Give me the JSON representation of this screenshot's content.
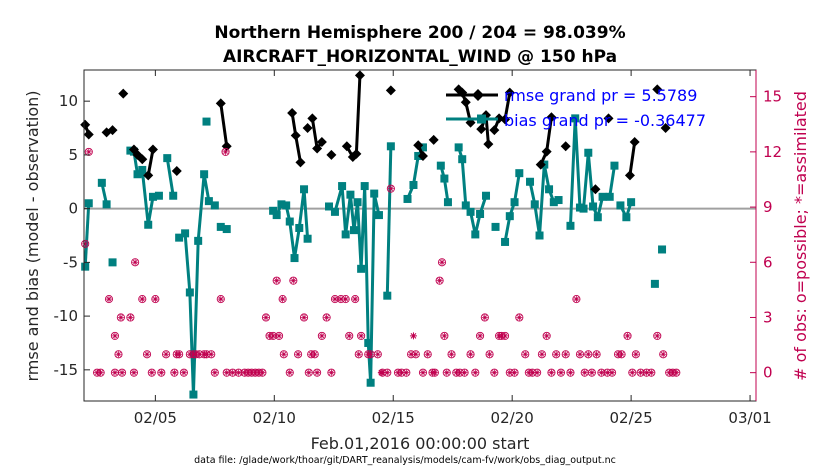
{
  "chart_data": {
    "type": "line",
    "title": "Northern Hemisphere 200 / 204 = 98.039%",
    "subtitle": "AIRCRAFT_HORIZONTAL_WIND @ 150 hPa",
    "ylabel": "rmse and bias (model - observation)",
    "y2label": "# of obs: o=possible; *=assimilated",
    "xlabel": "Feb.01,2016 00:00:00 start",
    "footnote": "data file: /glade/work/thoar/git/DART_reanalysis/models/cam-fv/work/obs_diag_output.nc",
    "xlim": [
      1.0,
      29.25
    ],
    "ylim": [
      -17.9,
      12.9
    ],
    "y2lim": [
      -1.54,
      16.45
    ],
    "x_ticks": [
      {
        "v": 4,
        "label": "02/05"
      },
      {
        "v": 9,
        "label": "02/10"
      },
      {
        "v": 14,
        "label": "02/15"
      },
      {
        "v": 19,
        "label": "02/20"
      },
      {
        "v": 24,
        "label": "02/25"
      },
      {
        "v": 29,
        "label": "03/01"
      }
    ],
    "y_ticks": [
      {
        "v": 10,
        "label": "10"
      },
      {
        "v": 5,
        "label": "5"
      },
      {
        "v": 0,
        "label": "0"
      },
      {
        "v": -5,
        "label": "-5"
      },
      {
        "v": -10,
        "label": "-10"
      },
      {
        "v": -15,
        "label": "-15"
      }
    ],
    "y2_ticks": [
      {
        "v": 15,
        "label": "15"
      },
      {
        "v": 12,
        "label": "12"
      },
      {
        "v": 9,
        "label": "9"
      },
      {
        "v": 6,
        "label": "6"
      },
      {
        "v": 3,
        "label": "3"
      },
      {
        "v": 0,
        "label": "0"
      }
    ],
    "series": [
      {
        "name": "rmse grand pr = 5.5789",
        "color": "#000000",
        "segments": [
          [
            [
              1.05,
              7.8
            ],
            [
              1.2,
              6.9
            ]
          ],
          [
            [
              1.95,
              7.1
            ]
          ],
          [
            [
              2.2,
              7.3
            ]
          ],
          [
            [
              2.65,
              10.7
            ]
          ],
          [
            [
              3.1,
              5.5
            ],
            [
              3.25,
              5.0
            ],
            [
              3.45,
              4.6
            ]
          ],
          [
            [
              3.7,
              3.1
            ],
            [
              3.9,
              5.5
            ]
          ],
          [
            [
              4.9,
              3.5
            ]
          ],
          [
            [
              6.75,
              9.8
            ],
            [
              7.0,
              5.8
            ]
          ],
          [
            [
              9.75,
              8.9
            ],
            [
              9.9,
              6.8
            ],
            [
              10.1,
              4.3
            ]
          ],
          [
            [
              10.4,
              7.5
            ]
          ],
          [
            [
              10.6,
              8.4
            ],
            [
              10.8,
              5.6
            ],
            [
              11.0,
              6.2
            ]
          ],
          [
            [
              11.4,
              5.0
            ]
          ],
          [
            [
              12.05,
              5.8
            ],
            [
              12.3,
              4.8
            ],
            [
              12.45,
              5.1
            ],
            [
              12.6,
              12.4
            ]
          ],
          [
            [
              13.9,
              11.0
            ]
          ],
          [
            [
              15.05,
              5.9
            ],
            [
              15.25,
              4.9
            ]
          ],
          [
            [
              15.7,
              6.4
            ]
          ],
          [
            [
              16.75,
              11.1
            ],
            [
              16.9,
              10.8
            ],
            [
              17.05,
              9.9
            ],
            [
              17.25,
              8.0
            ]
          ],
          [
            [
              17.7,
              7.4
            ],
            [
              17.9,
              8.7
            ],
            [
              18.0,
              6.0
            ]
          ],
          [
            [
              18.25,
              7.3
            ],
            [
              18.45,
              8.4
            ]
          ],
          [
            [
              18.7,
              8.3
            ],
            [
              18.9,
              10.8
            ]
          ],
          [
            [
              20.2,
              4.1
            ],
            [
              20.45,
              5.3
            ],
            [
              20.65,
              8.5
            ]
          ],
          [
            [
              21.25,
              5.8
            ]
          ],
          [
            [
              22.5,
              1.8
            ]
          ],
          [
            [
              23.05,
              8.4
            ]
          ],
          [
            [
              23.95,
              3.1
            ],
            [
              24.15,
              6.2
            ]
          ],
          [
            [
              25.1,
              11.1
            ]
          ],
          [
            [
              25.45,
              7.5
            ]
          ]
        ]
      },
      {
        "name": "bias grand pr = -0.36477",
        "color": "#008080",
        "segments": [
          [
            [
              1.05,
              -5.4
            ],
            [
              1.2,
              0.5
            ]
          ],
          [
            [
              1.75,
              2.4
            ],
            [
              1.95,
              0.4
            ]
          ],
          [
            [
              2.2,
              -5.0
            ]
          ],
          [
            [
              2.95,
              5.4
            ],
            [
              3.1,
              5.3
            ],
            [
              3.25,
              3.2
            ],
            [
              3.45,
              3.6
            ],
            [
              3.7,
              -1.5
            ],
            [
              3.9,
              1.1
            ]
          ],
          [
            [
              4.15,
              1.2
            ]
          ],
          [
            [
              4.5,
              4.7
            ],
            [
              4.75,
              1.2
            ]
          ],
          [
            [
              5.0,
              -2.7
            ],
            [
              5.25,
              -2.3
            ],
            [
              5.45,
              -7.8
            ],
            [
              5.6,
              -17.3
            ],
            [
              5.8,
              -3.0
            ],
            [
              6.05,
              3.2
            ],
            [
              6.25,
              0.7
            ]
          ],
          [
            [
              6.5,
              0.3
            ]
          ],
          [
            [
              6.75,
              -1.7
            ],
            [
              7.0,
              -1.9
            ]
          ],
          [
            [
              6.15,
              8.1
            ]
          ],
          [
            [
              8.95,
              -0.2
            ],
            [
              9.1,
              -0.6
            ],
            [
              9.3,
              0.4
            ],
            [
              9.5,
              0.3
            ],
            [
              9.65,
              -1.2
            ],
            [
              9.85,
              -4.6
            ],
            [
              10.05,
              -1.8
            ],
            [
              10.25,
              1.8
            ],
            [
              10.4,
              -2.8
            ]
          ],
          [
            [
              11.3,
              0.2
            ]
          ],
          [
            [
              11.55,
              -0.3
            ],
            [
              11.85,
              2.1
            ],
            [
              12.0,
              -2.4
            ],
            [
              12.2,
              1.3
            ],
            [
              12.35,
              -2.0
            ],
            [
              12.5,
              0.6
            ],
            [
              12.65,
              -5.6
            ],
            [
              12.8,
              2.1
            ],
            [
              12.95,
              -12.5
            ],
            [
              13.05,
              -16.2
            ],
            [
              13.2,
              1.4
            ],
            [
              13.4,
              -0.6
            ]
          ],
          [
            [
              13.75,
              -8.1
            ],
            [
              13.9,
              5.8
            ]
          ],
          [
            [
              14.6,
              0.9
            ],
            [
              14.85,
              2.2
            ],
            [
              15.05,
              4.9
            ],
            [
              15.25,
              5.7
            ]
          ],
          [
            [
              16.0,
              4.0
            ],
            [
              16.15,
              2.8
            ],
            [
              16.3,
              0.6
            ]
          ],
          [
            [
              16.75,
              5.7
            ],
            [
              16.9,
              4.6
            ],
            [
              17.05,
              0.3
            ],
            [
              17.25,
              -0.3
            ],
            [
              17.45,
              -2.4
            ],
            [
              17.65,
              -0.5
            ],
            [
              17.9,
              1.2
            ]
          ],
          [
            [
              18.3,
              -1.7
            ]
          ],
          [
            [
              18.7,
              -3.1
            ],
            [
              18.9,
              -0.7
            ],
            [
              19.1,
              0.6
            ],
            [
              19.3,
              3.3
            ]
          ],
          [
            [
              19.75,
              2.5
            ],
            [
              19.95,
              0.4
            ],
            [
              20.15,
              -2.5
            ],
            [
              20.35,
              4.1
            ],
            [
              20.55,
              1.8
            ],
            [
              20.75,
              0.6
            ],
            [
              20.95,
              0.8
            ]
          ],
          [
            [
              21.45,
              -1.6
            ],
            [
              21.65,
              8.4
            ],
            [
              21.85,
              0.1
            ],
            [
              22.0,
              0.0
            ],
            [
              22.2,
              5.2
            ],
            [
              22.4,
              0.2
            ],
            [
              22.6,
              -0.8
            ],
            [
              22.8,
              1.1
            ]
          ],
          [
            [
              23.1,
              1.1
            ],
            [
              23.3,
              4.0
            ]
          ],
          [
            [
              23.55,
              0.3
            ],
            [
              23.8,
              -0.8
            ],
            [
              24.0,
              0.6
            ]
          ],
          [
            [
              25.0,
              -7.0
            ]
          ],
          [
            [
              25.3,
              -3.8
            ]
          ]
        ]
      }
    ],
    "obs_possible": [
      [
        1.05,
        7
      ],
      [
        1.2,
        12
      ],
      [
        1.55,
        0
      ],
      [
        1.7,
        0
      ],
      [
        2.05,
        4
      ],
      [
        2.3,
        0
      ],
      [
        2.3,
        2
      ],
      [
        2.45,
        1
      ],
      [
        2.55,
        3
      ],
      [
        2.6,
        0
      ],
      [
        2.95,
        3
      ],
      [
        3.1,
        0
      ],
      [
        3.15,
        6
      ],
      [
        3.45,
        4
      ],
      [
        3.65,
        1
      ],
      [
        3.85,
        0
      ],
      [
        4.0,
        4
      ],
      [
        4.25,
        0
      ],
      [
        4.45,
        1
      ],
      [
        4.8,
        0
      ],
      [
        4.9,
        1
      ],
      [
        5.0,
        1
      ],
      [
        5.2,
        0
      ],
      [
        5.45,
        1
      ],
      [
        5.6,
        1
      ],
      [
        5.7,
        1
      ],
      [
        5.85,
        1
      ],
      [
        6.05,
        1
      ],
      [
        6.15,
        1
      ],
      [
        6.35,
        1
      ],
      [
        6.5,
        0
      ],
      [
        6.75,
        4
      ],
      [
        6.95,
        12
      ],
      [
        7.0,
        0
      ],
      [
        7.25,
        0
      ],
      [
        7.5,
        0
      ],
      [
        7.75,
        0
      ],
      [
        7.9,
        0
      ],
      [
        8.05,
        0
      ],
      [
        8.2,
        0
      ],
      [
        8.35,
        0
      ],
      [
        8.5,
        0
      ],
      [
        8.65,
        3
      ],
      [
        8.8,
        2
      ],
      [
        8.95,
        2
      ],
      [
        9.1,
        5
      ],
      [
        9.2,
        2
      ],
      [
        9.35,
        4
      ],
      [
        9.4,
        1
      ],
      [
        9.65,
        0
      ],
      [
        9.8,
        5
      ],
      [
        10.0,
        1
      ],
      [
        10.25,
        3
      ],
      [
        10.45,
        0
      ],
      [
        10.55,
        1
      ],
      [
        10.7,
        1
      ],
      [
        10.8,
        0
      ],
      [
        11.0,
        2
      ],
      [
        11.2,
        3
      ],
      [
        11.4,
        0
      ],
      [
        11.55,
        4
      ],
      [
        11.8,
        4
      ],
      [
        12.0,
        4
      ],
      [
        12.15,
        2
      ],
      [
        12.4,
        4
      ],
      [
        12.55,
        1
      ],
      [
        12.65,
        2
      ],
      [
        12.95,
        1
      ],
      [
        13.05,
        1
      ],
      [
        13.35,
        1
      ],
      [
        13.55,
        0
      ],
      [
        13.75,
        0
      ],
      [
        13.9,
        10
      ],
      [
        14.2,
        0
      ],
      [
        14.35,
        0
      ],
      [
        14.55,
        0
      ],
      [
        14.75,
        1
      ],
      [
        14.95,
        1
      ],
      [
        15.25,
        0
      ],
      [
        15.45,
        1
      ],
      [
        15.65,
        0
      ],
      [
        15.75,
        0
      ],
      [
        15.95,
        5
      ],
      [
        16.05,
        6
      ],
      [
        16.15,
        2
      ],
      [
        16.25,
        0
      ],
      [
        16.45,
        1
      ],
      [
        16.65,
        0
      ],
      [
        16.8,
        0
      ],
      [
        17.0,
        0
      ],
      [
        17.25,
        1
      ],
      [
        17.45,
        0
      ],
      [
        17.65,
        2
      ],
      [
        17.85,
        3
      ],
      [
        18.05,
        1
      ],
      [
        18.25,
        0
      ],
      [
        18.45,
        2
      ],
      [
        18.55,
        2
      ],
      [
        18.7,
        2
      ],
      [
        18.9,
        0
      ],
      [
        19.1,
        0
      ],
      [
        19.3,
        3
      ],
      [
        19.55,
        1
      ],
      [
        19.7,
        0
      ],
      [
        19.85,
        0
      ],
      [
        20.05,
        0
      ],
      [
        20.25,
        1
      ],
      [
        20.45,
        2
      ],
      [
        20.65,
        0
      ],
      [
        20.85,
        1
      ],
      [
        21.05,
        0
      ],
      [
        21.25,
        1
      ],
      [
        21.45,
        0
      ],
      [
        21.7,
        4
      ],
      [
        21.85,
        1
      ],
      [
        22.05,
        0
      ],
      [
        22.2,
        1
      ],
      [
        22.35,
        0
      ],
      [
        22.55,
        1
      ],
      [
        22.75,
        0
      ],
      [
        23.0,
        0
      ],
      [
        23.2,
        0
      ],
      [
        23.45,
        1
      ],
      [
        23.6,
        1
      ],
      [
        23.85,
        2
      ],
      [
        24.05,
        0
      ],
      [
        24.2,
        1
      ],
      [
        24.4,
        0
      ],
      [
        24.65,
        0
      ],
      [
        24.85,
        0
      ],
      [
        25.1,
        2
      ],
      [
        25.35,
        1
      ],
      [
        25.6,
        0
      ],
      [
        25.75,
        0
      ],
      [
        25.9,
        0
      ]
    ],
    "obs_assimilated": [
      [
        13.5,
        0
      ],
      [
        14.85,
        2
      ]
    ],
    "legend": {
      "placement": "top-right"
    },
    "grid": false
  }
}
